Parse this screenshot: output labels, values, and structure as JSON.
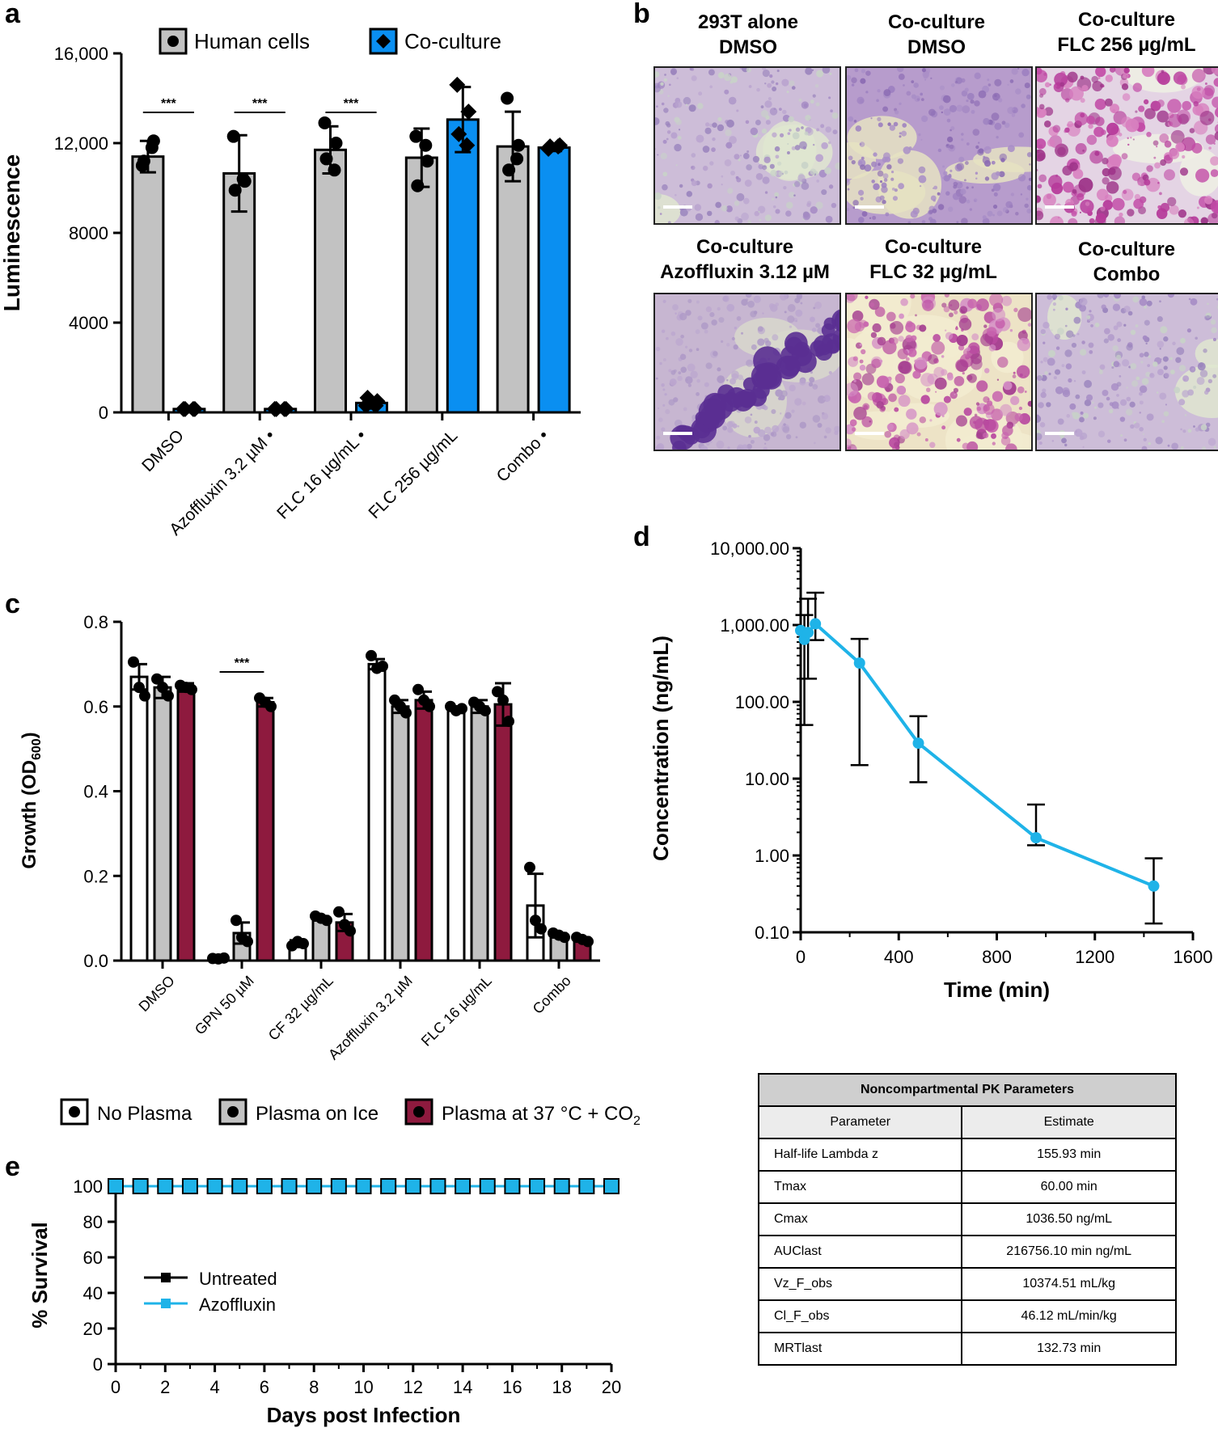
{
  "panels": {
    "a": "a",
    "b": "b",
    "c": "c",
    "d": "d",
    "e": "e"
  },
  "colors": {
    "gray": "#c2c2c2",
    "blue": "#0a8ff1",
    "maroon": "#8e1a3e",
    "cyan": "#1fb3e8",
    "black": "#000000"
  },
  "chart_data": [
    {
      "id": "a",
      "type": "bar",
      "ylabel": "Luminescence",
      "ylim": [
        0,
        16000
      ],
      "yticks": [
        0,
        4000,
        8000,
        12000,
        16000
      ],
      "ytick_labels": [
        "0",
        "4000",
        "8000",
        "12,000",
        "16,000"
      ],
      "categories": [
        "DMSO",
        "Azoffluxin 3.2 µM",
        "FLC 16 µg/mL",
        "FLC 256 µg/mL",
        "Combo"
      ],
      "category_marks": [
        "",
        "•",
        "•",
        "",
        "•"
      ],
      "legend": [
        "Human cells",
        "Co-culture"
      ],
      "series": [
        {
          "name": "Human cells",
          "color": "gray",
          "marker": "circle",
          "values": [
            11400,
            10650,
            11700,
            11350,
            11850
          ],
          "err": [
            700,
            1700,
            1050,
            1300,
            1550
          ],
          "points": [
            [
              11000,
              12100,
              11200,
              11800
            ],
            [
              12300,
              10300,
              9900,
              10400
            ],
            [
              12900,
              12000,
              11300,
              10800
            ],
            [
              12300,
              11200,
              10100,
              11900
            ],
            [
              14000,
              11900,
              10800,
              11300
            ]
          ]
        },
        {
          "name": "Co-culture",
          "color": "blue",
          "marker": "diamond",
          "values": [
            150,
            150,
            420,
            13050,
            11800
          ],
          "err": [
            0,
            0,
            250,
            1450,
            150
          ],
          "points": [
            [
              150,
              150,
              150,
              150
            ],
            [
              150,
              150,
              150,
              150
            ],
            [
              300,
              500,
              650,
              300
            ],
            [
              14600,
              13400,
              12400,
              11900
            ],
            [
              11750,
              11900,
              11850,
              11850
            ]
          ]
        }
      ],
      "significance": [
        {
          "group": 0,
          "label": "***"
        },
        {
          "group": 1,
          "label": "***"
        },
        {
          "group": 2,
          "label": "***"
        }
      ]
    },
    {
      "id": "c",
      "type": "bar",
      "ylabel": "Growth (OD",
      "ylabel_sub": "600",
      "ylabel_end": ")",
      "ylim": [
        0,
        0.8
      ],
      "yticks": [
        0,
        0.2,
        0.4,
        0.6,
        0.8
      ],
      "ytick_labels": [
        "0.0",
        "0.2",
        "0.4",
        "0.6",
        "0.8"
      ],
      "categories": [
        "DMSO",
        "GPN 50 µM",
        "CF 32 µg/mL",
        "Azoffluxin 3.2 µM",
        "FLC 16 µg/mL",
        "Combo"
      ],
      "legend": [
        "No Plasma",
        "Plasma on Ice",
        "Plasma at 37 °C + CO"
      ],
      "legend_sub": "2",
      "series": [
        {
          "name": "No Plasma",
          "color": "white",
          "values": [
            0.67,
            0.005,
            0.04,
            0.7,
            0.595,
            0.13
          ],
          "err": [
            0.03,
            0.003,
            0.008,
            0.012,
            0.005,
            0.075
          ],
          "points": [
            [
              0.705,
              0.645,
              0.625
            ],
            [
              0.005,
              0.004,
              0.006
            ],
            [
              0.035,
              0.045,
              0.04
            ],
            [
              0.72,
              0.69,
              0.695
            ],
            [
              0.6,
              0.59,
              0.595
            ],
            [
              0.22,
              0.095,
              0.075
            ]
          ]
        },
        {
          "name": "Plasma on Ice",
          "color": "gray",
          "values": [
            0.645,
            0.065,
            0.1,
            0.6,
            0.6,
            0.06
          ],
          "err": [
            0.025,
            0.025,
            0.005,
            0.015,
            0.015,
            0.005
          ],
          "points": [
            [
              0.665,
              0.645,
              0.625
            ],
            [
              0.095,
              0.055,
              0.045
            ],
            [
              0.105,
              0.1,
              0.095
            ],
            [
              0.615,
              0.6,
              0.585
            ],
            [
              0.61,
              0.6,
              0.59
            ],
            [
              0.065,
              0.06,
              0.055
            ]
          ]
        },
        {
          "name": "Plasma at 37 °C + CO2",
          "color": "maroon",
          "values": [
            0.645,
            0.61,
            0.09,
            0.615,
            0.605,
            0.05
          ],
          "err": [
            0.01,
            0.01,
            0.02,
            0.02,
            0.05,
            0.005
          ],
          "points": [
            [
              0.65,
              0.645,
              0.64
            ],
            [
              0.62,
              0.61,
              0.6
            ],
            [
              0.115,
              0.085,
              0.07
            ],
            [
              0.64,
              0.615,
              0.6
            ],
            [
              0.635,
              0.615,
              0.565
            ],
            [
              0.055,
              0.05,
              0.045
            ]
          ]
        }
      ],
      "significance": [
        {
          "group": 1,
          "label": "***"
        }
      ]
    },
    {
      "id": "d",
      "type": "line",
      "xlabel": "Time (min)",
      "ylabel": "Concentration (ng/mL)",
      "xlim": [
        0,
        1600
      ],
      "xticks": [
        0,
        400,
        800,
        1200,
        1600
      ],
      "yscale": "log",
      "ylim": [
        0.1,
        10000
      ],
      "yticks": [
        0.1,
        1,
        10,
        100,
        1000,
        10000
      ],
      "ytick_labels": [
        "0.10",
        "1.00",
        "10.00",
        "100.00",
        "1,000.00",
        "10,000.00"
      ],
      "x": [
        0,
        15,
        30,
        60,
        240,
        480,
        960,
        1440
      ],
      "y": [
        850,
        650,
        800,
        1036.5,
        320,
        29,
        1.7,
        0.4
      ],
      "yerr_low": [
        850,
        600,
        600,
        400,
        305,
        20,
        0.34,
        0.27
      ],
      "yerr_high": [
        850,
        700,
        1400,
        1600,
        340,
        36,
        2.9,
        0.52
      ]
    },
    {
      "id": "e",
      "type": "line",
      "xlabel": "Days post Infection",
      "ylabel": "% Survival",
      "xlim": [
        0,
        20
      ],
      "xticks": [
        0,
        2,
        4,
        6,
        8,
        10,
        12,
        14,
        16,
        18,
        20
      ],
      "ylim": [
        0,
        100
      ],
      "yticks": [
        0,
        20,
        40,
        60,
        80,
        100
      ],
      "series": [
        {
          "name": "Untreated",
          "color": "black",
          "x": [
            0,
            1,
            2,
            3,
            4,
            5,
            6,
            7,
            8,
            9,
            10,
            11,
            12,
            13,
            14,
            15,
            16,
            17,
            18,
            19,
            20
          ],
          "y": [
            100,
            100,
            100,
            100,
            100,
            100,
            100,
            100,
            100,
            100,
            100,
            100,
            100,
            100,
            100,
            100,
            100,
            100,
            100,
            100,
            100
          ]
        },
        {
          "name": "Azoffluxin",
          "color": "cyan",
          "x": [
            0,
            1,
            2,
            3,
            4,
            5,
            6,
            7,
            8,
            9,
            10,
            11,
            12,
            13,
            14,
            15,
            16,
            17,
            18,
            19,
            20
          ],
          "y": [
            100,
            100,
            100,
            100,
            100,
            100,
            100,
            100,
            100,
            100,
            100,
            100,
            100,
            100,
            100,
            100,
            100,
            100,
            100,
            100,
            100
          ]
        }
      ]
    }
  ],
  "micrographs": [
    {
      "line1": "293T alone",
      "line2": "DMSO",
      "style": "lightpurple"
    },
    {
      "line1": "Co-culture",
      "line2": "DMSO",
      "style": "patchy"
    },
    {
      "line1": "Co-culture",
      "line2": "FLC 256 µg/mL",
      "style": "magenta"
    },
    {
      "line1": "Co-culture",
      "line2": "Azoffluxin 3.12 µM",
      "style": "darkclump"
    },
    {
      "line1": "Co-culture",
      "line2": "FLC 32 µg/mL",
      "style": "pinknet"
    },
    {
      "line1": "Co-culture",
      "line2": "Combo",
      "style": "lightpurple"
    }
  ],
  "pk_table": {
    "caption": "Noncompartmental PK Parameters",
    "headers": [
      "Parameter",
      "Estimate"
    ],
    "rows": [
      [
        "Half-life Lambda z",
        "155.93 min"
      ],
      [
        "Tmax",
        "60.00 min"
      ],
      [
        "Cmax",
        "1036.50 ng/mL"
      ],
      [
        "AUClast",
        "216756.10 min ng/mL"
      ],
      [
        "Vz_F_obs",
        "10374.51 mL/kg"
      ],
      [
        "Cl_F_obs",
        "46.12 mL/min/kg"
      ],
      [
        "MRTlast",
        "132.73 min"
      ]
    ]
  }
}
